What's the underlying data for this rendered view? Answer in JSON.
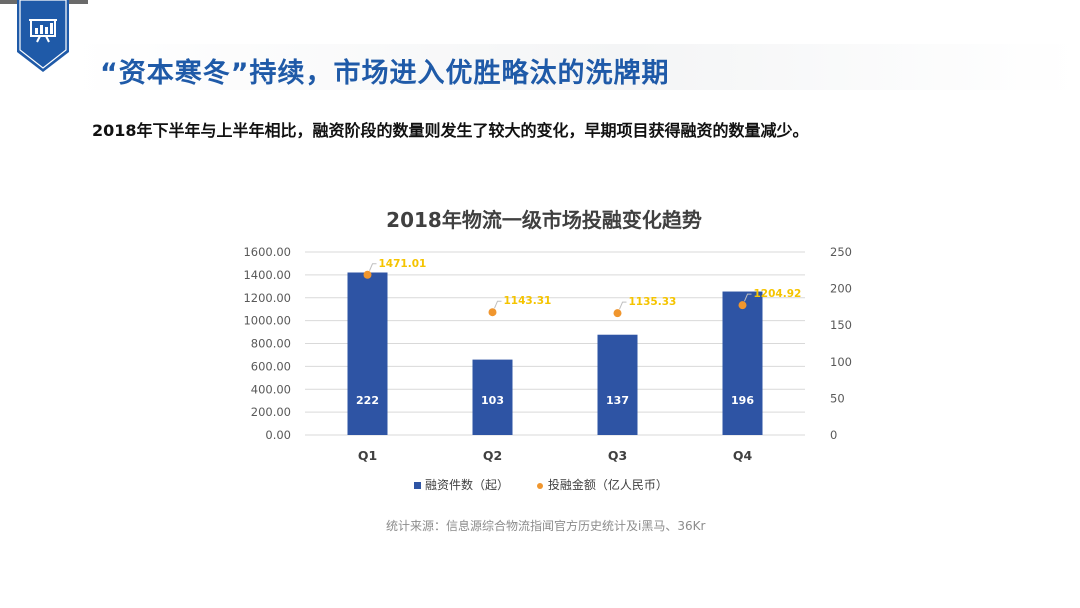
{
  "slide": {
    "heading": "“资本寒冬”持续，市场进入优胜略汰的洗牌期",
    "subtitle": "2018年下半年与上半年相比，融资阶段的数量则发生了较大的变化，早期项目获得融资的数量减少。",
    "badge_icon": "presentation-chart-icon",
    "source": "统计来源：信息源综合物流指闻官方历史统计及i黑马、36Kr"
  },
  "colors": {
    "heading": "#1f5aa8",
    "badge": "#1f5aa8",
    "bar": "#2e54a4",
    "dot": "#f0962e",
    "dot_label": "#f5c400",
    "axis_text": "#595959",
    "grid": "#d9d9d9"
  },
  "chart_data": {
    "type": "bar",
    "title": "2018年物流一级市场投融变化趋势",
    "categories": [
      "Q1",
      "Q2",
      "Q3",
      "Q4"
    ],
    "series": [
      {
        "name": "融资件数（起）",
        "type": "bar",
        "axis": "right",
        "values": [
          222,
          103,
          137,
          196
        ],
        "labels": [
          "222",
          "103",
          "137",
          "196"
        ]
      },
      {
        "name": "投融金额（亿人民币）",
        "type": "scatter",
        "axis": "left",
        "values": [
          1471.01,
          1143.31,
          1135.33,
          1204.92
        ],
        "labels": [
          "1471.01",
          "1143.31",
          "1135.33",
          "1204.92"
        ]
      }
    ],
    "y_left": {
      "ylim": [
        0,
        1600
      ],
      "ticks": [
        "0.00",
        "200.00",
        "400.00",
        "600.00",
        "800.00",
        "1000.00",
        "1200.00",
        "1400.00",
        "1600.00"
      ]
    },
    "y_right": {
      "ylim": [
        0,
        250
      ],
      "ticks": [
        "0",
        "50",
        "100",
        "150",
        "200",
        "250"
      ]
    },
    "legend_position": "bottom",
    "grid": true
  }
}
